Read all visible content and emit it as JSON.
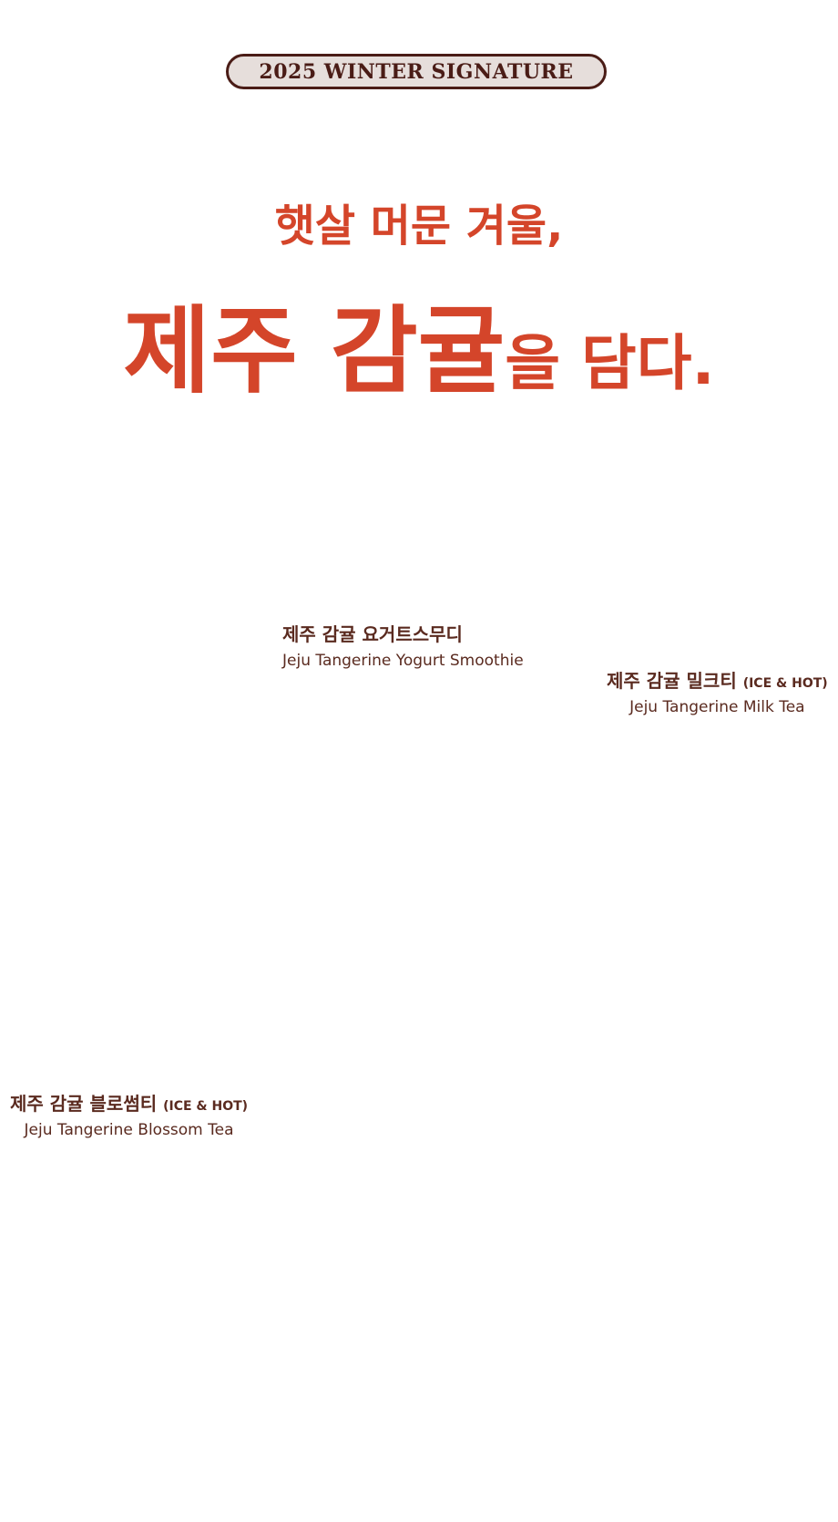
{
  "badge": "2025 WINTER SIGNATURE",
  "headline": {
    "line1": "햇살 머문 겨울,",
    "line2_big": "제주 감귤",
    "line2_small": "을 담다."
  },
  "menu": [
    {
      "name_ko": "제주 감귤 요거트스무디",
      "tag": "",
      "name_en": "Jeju Tangerine Yogurt Smoothie"
    },
    {
      "name_ko": "제주 감귤 밀크티",
      "tag": "(ICE & HOT)",
      "name_en": "Jeju Tangerine Milk Tea"
    },
    {
      "name_ko": "제주 감귤 블로썸티",
      "tag": "(ICE & HOT)",
      "name_en": "Jeju Tangerine Blossom Tea"
    }
  ],
  "colors": {
    "accent": "#d4452a",
    "text": "#5a2a1f",
    "badge_bg": "#e6dedb"
  }
}
